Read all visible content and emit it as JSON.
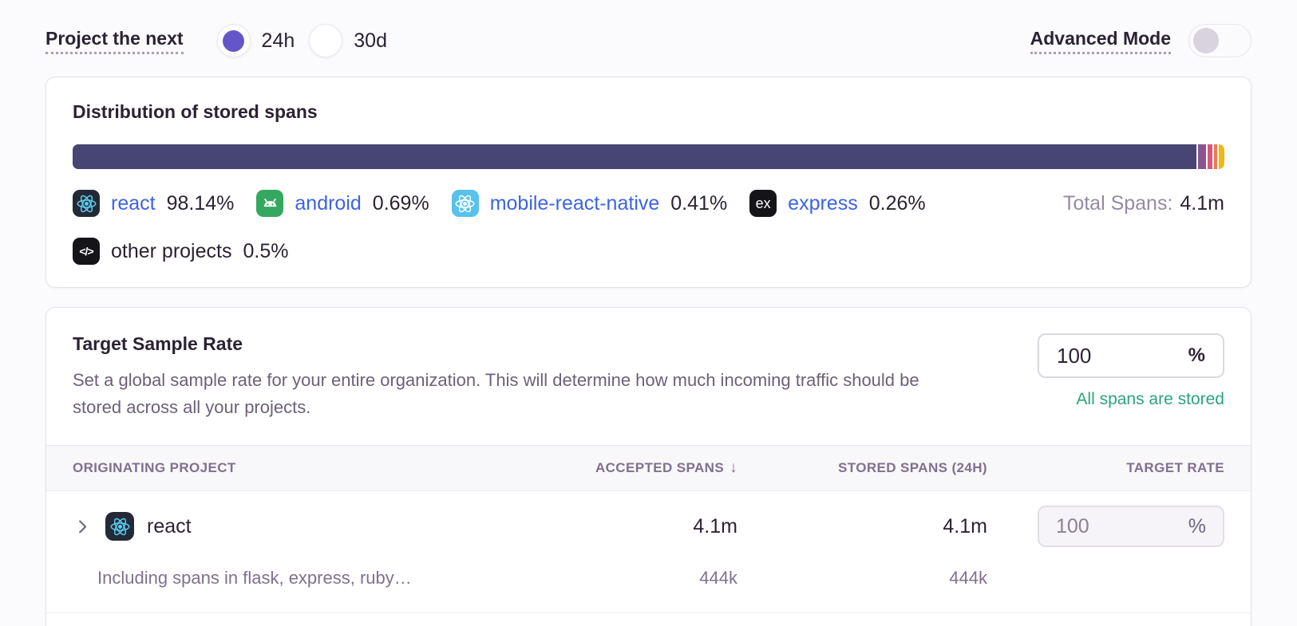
{
  "controls": {
    "project_label": "Project the next",
    "period_options": [
      {
        "label": "24h",
        "selected": true
      },
      {
        "label": "30d",
        "selected": false
      }
    ],
    "advanced_mode_label": "Advanced Mode",
    "advanced_mode_enabled": false
  },
  "distribution_card": {
    "title": "Distribution of stored spans",
    "total_label": "Total Spans:",
    "total_value": "4.1m",
    "segments": [
      {
        "name": "react",
        "pct": "98.14%",
        "value": 98.14,
        "color": "#474573",
        "icon": "react-icon",
        "link": true
      },
      {
        "name": "android",
        "pct": "0.69%",
        "value": 0.69,
        "color": "#8a5494",
        "icon": "android-icon",
        "link": true
      },
      {
        "name": "mobile-react-native",
        "pct": "0.41%",
        "value": 0.41,
        "color": "#d9567e",
        "icon": "react-native-icon",
        "link": true
      },
      {
        "name": "express",
        "pct": "0.26%",
        "value": 0.26,
        "color": "#ee7b4d",
        "icon": "express-icon",
        "link": true
      },
      {
        "name": "other projects",
        "pct": "0.5%",
        "value": 0.5,
        "color": "#f2b714",
        "icon": "code-icon",
        "link": false
      }
    ]
  },
  "sample_rate_card": {
    "title": "Target Sample Rate",
    "description": "Set a global sample rate for your entire organization. This will determine how much incoming traffic should be stored across all your projects.",
    "rate_input": {
      "value": "100",
      "suffix": "%"
    },
    "status_text": "All spans are stored",
    "table": {
      "headers": [
        "ORIGINATING PROJECT",
        "ACCEPTED SPANS",
        "STORED SPANS (24H)",
        "TARGET RATE"
      ],
      "sort_icon": "↓",
      "rows": [
        {
          "project": "react",
          "project_icon": "react-icon",
          "accepted": "4.1m",
          "stored": "4.1m",
          "rate": {
            "value": "100",
            "suffix": "%"
          },
          "subrow": {
            "label": "Including spans in flask, express, ruby…",
            "accepted": "444k",
            "stored": "444k"
          }
        }
      ]
    }
  },
  "colors": {
    "accent_purple": "#6456c8",
    "link_blue": "#3d63e5",
    "status_green": "#2aa47e",
    "muted_text": "#80708f"
  }
}
